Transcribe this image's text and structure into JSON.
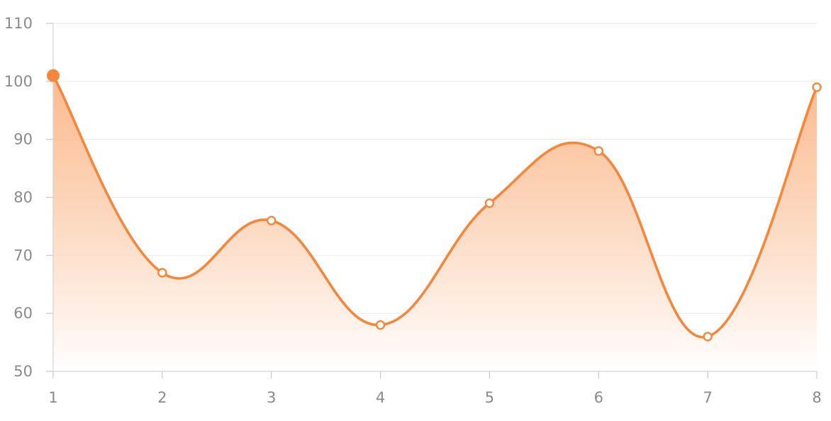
{
  "chart_data": {
    "type": "area",
    "title": "",
    "xlabel": "",
    "ylabel": "",
    "categories": [
      "1",
      "2",
      "3",
      "4",
      "5",
      "6",
      "7",
      "8"
    ],
    "series": [
      {
        "values": [
          101,
          67,
          76,
          58,
          79,
          88,
          56,
          99
        ],
        "color": "#f5863a",
        "highlighted_index": 0
      }
    ],
    "ylim": [
      50,
      110
    ],
    "yticks": [
      50,
      60,
      70,
      80,
      90,
      100,
      110
    ],
    "grid": true,
    "smooth": true,
    "fill_gradient": [
      "#f9a46a",
      "#ffffff"
    ]
  }
}
